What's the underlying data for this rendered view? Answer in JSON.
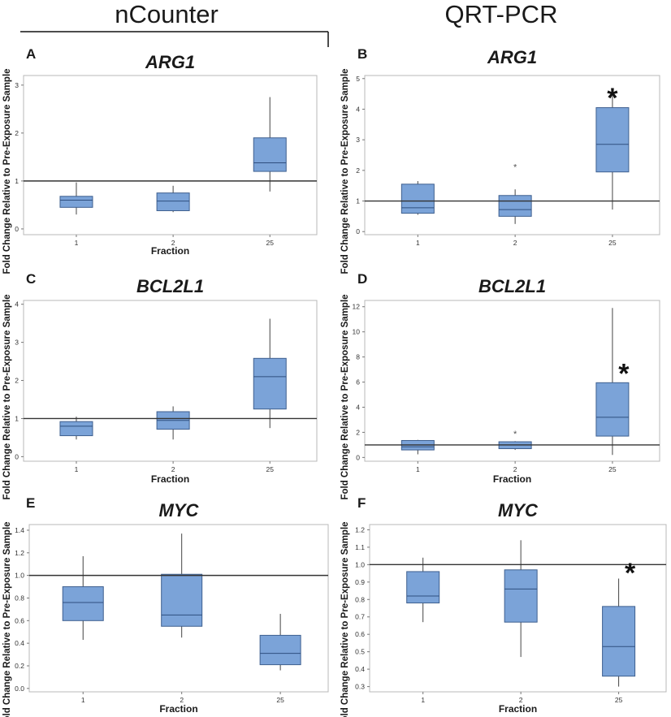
{
  "column_titles": {
    "left": "nCounter",
    "right": "QRT-PCR"
  },
  "chart_data": [
    {
      "panel": "A",
      "type": "box",
      "title": "ARG1",
      "ylabel": "Fold Change Relative to Pre-Exposure Sample",
      "xlabel": "Fraction",
      "categories": [
        "1",
        "2",
        "25"
      ],
      "yticks": [
        "0",
        "1",
        "2",
        "3"
      ],
      "ylim": [
        -0.12,
        3.2
      ],
      "reference_line": 1,
      "box_color": "#7ba3d8",
      "boxes": [
        {
          "min": 0.3,
          "q1": 0.45,
          "median": 0.6,
          "q3": 0.68,
          "max": 0.97
        },
        {
          "min": 0.35,
          "q1": 0.38,
          "median": 0.58,
          "q3": 0.75,
          "max": 0.9
        },
        {
          "min": 0.78,
          "q1": 1.2,
          "median": 1.38,
          "q3": 1.9,
          "max": 2.75
        }
      ],
      "outliers": [],
      "significance": []
    },
    {
      "panel": "B",
      "type": "box",
      "title": "ARG1",
      "ylabel": "Fold Change Relative to Pre-Exposure Sample",
      "xlabel": "",
      "categories": [
        "1",
        "2",
        "25"
      ],
      "yticks": [
        "0",
        "1",
        "2",
        "3",
        "4",
        "5"
      ],
      "ylim": [
        -0.1,
        5.1
      ],
      "reference_line": 1,
      "box_color": "#7ba3d8",
      "boxes": [
        {
          "min": 0.55,
          "q1": 0.6,
          "median": 0.78,
          "q3": 1.55,
          "max": 1.65
        },
        {
          "min": 0.25,
          "q1": 0.5,
          "median": 0.72,
          "q3": 1.18,
          "max": 1.38
        },
        {
          "min": 0.72,
          "q1": 1.95,
          "median": 2.85,
          "q3": 4.05,
          "max": 4.48
        }
      ],
      "outliers": [
        {
          "category": "2",
          "value": 2.2,
          "label": "*"
        }
      ],
      "significance": [
        {
          "category": "25",
          "value": 4.7,
          "label": "*"
        }
      ]
    },
    {
      "panel": "C",
      "type": "box",
      "title": "BCL2L1",
      "ylabel": "Fold Change Relative to Pre-Exposure Sample",
      "xlabel": "Fraction",
      "categories": [
        "1",
        "2",
        "25"
      ],
      "yticks": [
        "0",
        "1",
        "2",
        "3",
        "4"
      ],
      "ylim": [
        -0.12,
        4.1
      ],
      "reference_line": 1,
      "box_color": "#7ba3d8",
      "boxes": [
        {
          "min": 0.45,
          "q1": 0.55,
          "median": 0.8,
          "q3": 0.92,
          "max": 1.05
        },
        {
          "min": 0.45,
          "q1": 0.72,
          "median": 0.95,
          "q3": 1.18,
          "max": 1.32
        },
        {
          "min": 0.75,
          "q1": 1.25,
          "median": 2.1,
          "q3": 2.58,
          "max": 3.62
        }
      ],
      "outliers": [],
      "significance": []
    },
    {
      "panel": "D",
      "type": "box",
      "title": "BCL2L1",
      "ylabel": "Fold Change Relative to Pre-Exposure Sample",
      "xlabel": "Fraction",
      "categories": [
        "1",
        "2",
        "25"
      ],
      "yticks": [
        "0",
        "2",
        "4",
        "6",
        "8",
        "10",
        "12"
      ],
      "ylim": [
        -0.3,
        12.5
      ],
      "reference_line": 1,
      "box_color": "#7ba3d8",
      "boxes": [
        {
          "min": 0.25,
          "q1": 0.6,
          "median": 0.85,
          "q3": 1.35,
          "max": 1.4
        },
        {
          "min": 0.6,
          "q1": 0.7,
          "median": 1.0,
          "q3": 1.25,
          "max": 1.3
        },
        {
          "min": 0.2,
          "q1": 1.7,
          "median": 3.2,
          "q3": 5.95,
          "max": 11.9
        }
      ],
      "outliers": [
        {
          "category": "2",
          "value": 2.1,
          "label": "*"
        }
      ],
      "significance": [
        {
          "category": "25",
          "value": 7.5,
          "label": "*"
        }
      ]
    },
    {
      "panel": "E",
      "type": "box",
      "title": "MYC",
      "ylabel": "Fold Change Relative to Pre-Exposure Sample",
      "xlabel": "Fraction",
      "categories": [
        "1",
        "2",
        "25"
      ],
      "yticks": [
        "0.0",
        "0.2",
        "0.4",
        "0.6",
        "0.8",
        "1.0",
        "1.2",
        "1.4"
      ],
      "ylim": [
        -0.03,
        1.45
      ],
      "reference_line": 1,
      "box_color": "#7ba3d8",
      "boxes": [
        {
          "min": 0.43,
          "q1": 0.6,
          "median": 0.76,
          "q3": 0.9,
          "max": 1.17
        },
        {
          "min": 0.45,
          "q1": 0.55,
          "median": 0.65,
          "q3": 1.01,
          "max": 1.37
        },
        {
          "min": 0.16,
          "q1": 0.21,
          "median": 0.31,
          "q3": 0.47,
          "max": 0.66
        }
      ],
      "outliers": [],
      "significance": []
    },
    {
      "panel": "F",
      "type": "box",
      "title": "MYC",
      "ylabel": "Fold Change Relative to Pre-Exposure Sample",
      "xlabel": "Fraction",
      "categories": [
        "1",
        "2",
        "25"
      ],
      "yticks": [
        "0.3",
        "0.4",
        "0.5",
        "0.6",
        "0.7",
        "0.8",
        "0.9",
        "1.0",
        "1.1",
        "1.2"
      ],
      "ylim": [
        0.27,
        1.23
      ],
      "reference_line": 1,
      "box_color": "#7ba3d8",
      "boxes": [
        {
          "min": 0.67,
          "q1": 0.78,
          "median": 0.82,
          "q3": 0.96,
          "max": 1.04
        },
        {
          "min": 0.47,
          "q1": 0.67,
          "median": 0.86,
          "q3": 0.97,
          "max": 1.14
        },
        {
          "min": 0.3,
          "q1": 0.36,
          "median": 0.53,
          "q3": 0.76,
          "max": 0.92
        }
      ],
      "outliers": [],
      "significance": [
        {
          "category": "25",
          "value": 1.01,
          "label": "*"
        }
      ]
    }
  ]
}
